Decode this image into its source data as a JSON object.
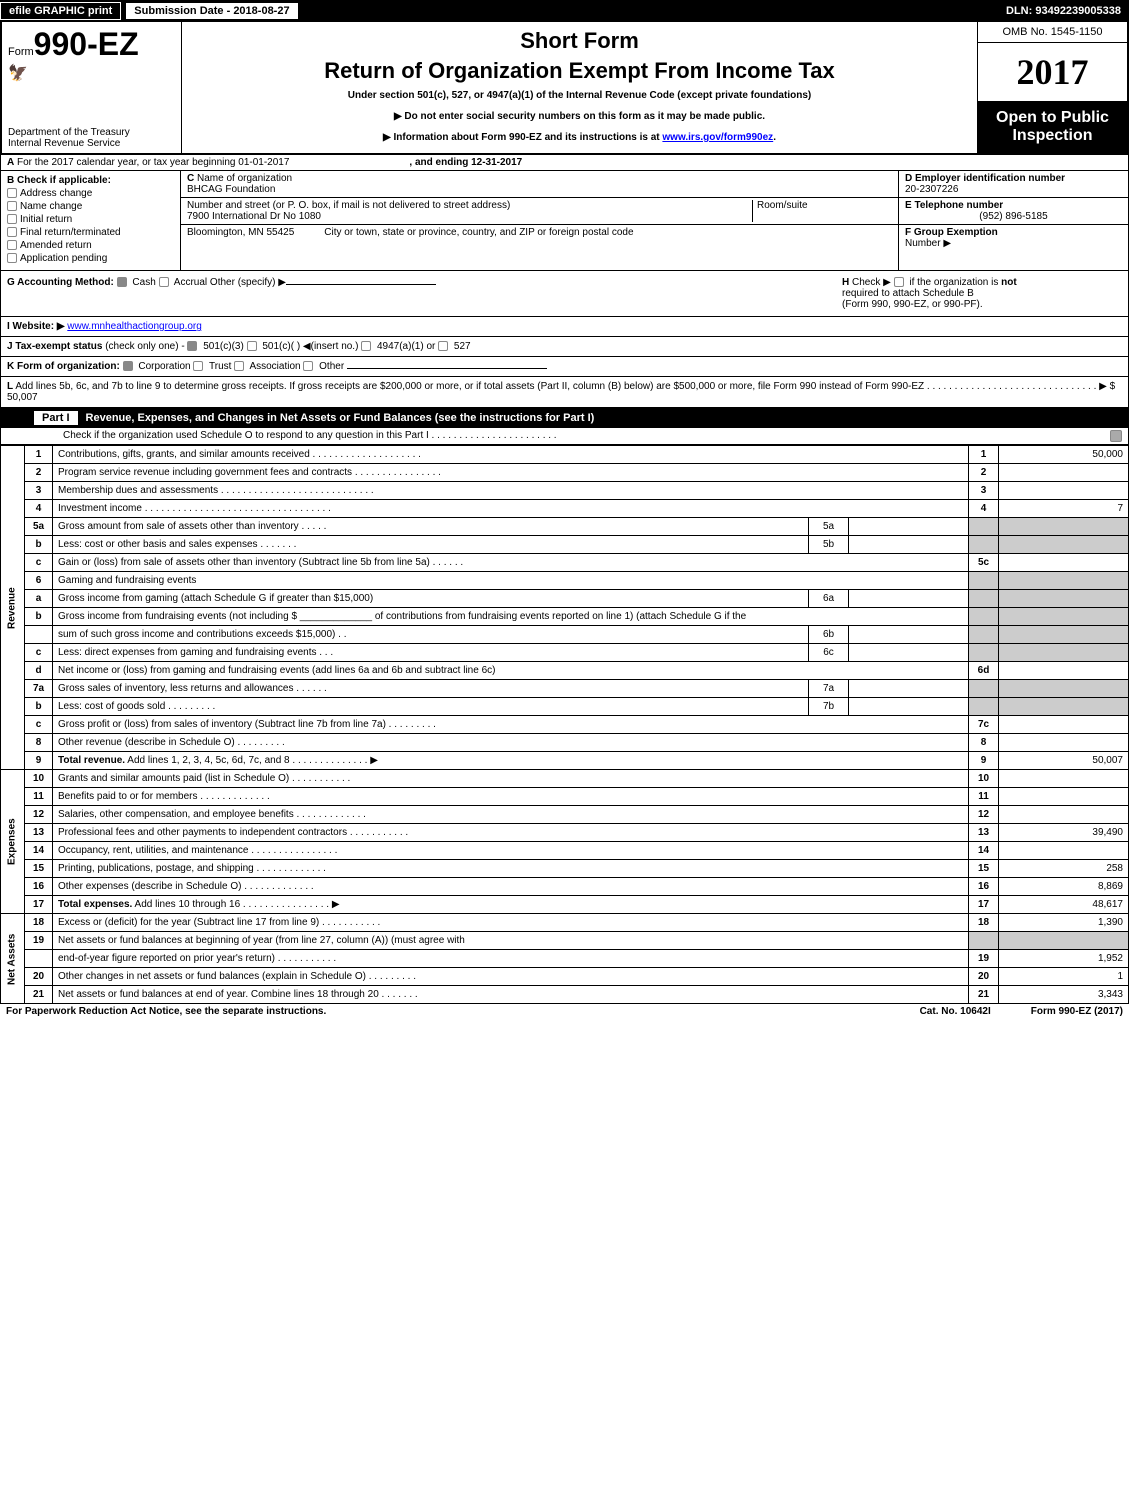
{
  "top_bar": {
    "efile": "efile GRAPHIC print",
    "submission": "Submission Date - 2018-08-27",
    "dln": "DLN: 93492239005338"
  },
  "header": {
    "form_prefix": "Form",
    "form_num": "990-EZ",
    "treasury1": "Department of the Treasury",
    "treasury2": "Internal Revenue Service",
    "short_form": "Short Form",
    "title": "Return of Organization Exempt From Income Tax",
    "under": "Under section 501(c), 527, or 4947(a)(1) of the Internal Revenue Code (except private foundations)",
    "ssn_warn": "▶ Do not enter social security numbers on this form as it may be made public.",
    "info_prefix": "▶ Information about Form 990-EZ and its instructions is at ",
    "info_link": "www.irs.gov/form990ez",
    "omb": "OMB No. 1545-1150",
    "year": "2017",
    "open": "Open to Public Inspection"
  },
  "tax_year": {
    "a_label": "A",
    "text": "For the 2017 calendar year, or tax year beginning 01-01-2017",
    "ending": ", and ending 12-31-2017"
  },
  "section_b": {
    "b_label": "B",
    "check_if": "Check if applicable:",
    "items": [
      "Address change",
      "Name change",
      "Initial return",
      "Final return/terminated",
      "Amended return",
      "Application pending"
    ]
  },
  "section_c": {
    "c_label": "C",
    "name_label": "Name of organization",
    "name": "BHCAG Foundation",
    "street_label": "Number and street (or P. O. box, if mail is not delivered to street address)",
    "street": "7900 International Dr No 1080",
    "room_label": "Room/suite",
    "city_label": "City or town, state or province, country, and ZIP or foreign postal code",
    "city": "Bloomington, MN  55425"
  },
  "section_d": {
    "label": "D Employer identification number",
    "value": "20-2307226"
  },
  "section_e": {
    "label": "E Telephone number",
    "value": "(952) 896-5185"
  },
  "section_f": {
    "label": "F Group Exemption",
    "number": "Number  ▶"
  },
  "section_g": {
    "label": "G Accounting Method:",
    "cash": "Cash",
    "accrual": "Accrual",
    "other": "Other (specify) ▶"
  },
  "section_h": {
    "label": "H",
    "check": "Check ▶",
    "text1": "if the organization is not",
    "text2": "required to attach Schedule B",
    "text3": "(Form 990, 990-EZ, or 990-PF)."
  },
  "section_i": {
    "label": "I Website: ▶",
    "value": "www.mnhealthactiongroup.org"
  },
  "section_j": {
    "label": "J Tax-exempt status",
    "note": "(check only one) -",
    "opt1": "501(c)(3)",
    "opt2": "501(c)(  ) ◀(insert no.)",
    "opt3": "4947(a)(1) or",
    "opt4": "527"
  },
  "section_k": {
    "label": "K Form of organization:",
    "corp": "Corporation",
    "trust": "Trust",
    "assoc": "Association",
    "other": "Other"
  },
  "section_l": {
    "label": "L",
    "text": "Add lines 5b, 6c, and 7b to line 9 to determine gross receipts. If gross receipts are $200,000 or more, or if total assets (Part II, column (B) below) are $500,000 or more, file Form 990 instead of Form 990-EZ  .  .  .  .  .  .  .  .  .  .  .  .  .  .  .  .  .  .  .  .  .  .  .  .  .  .  .  .  .  .  .  ▶ $ 50,007"
  },
  "part1": {
    "label": "Part I",
    "title": "Revenue, Expenses, and Changes in Net Assets or Fund Balances (see the instructions for Part I)",
    "check_o": "Check if the organization used Schedule O to respond to any question in this Part I .  .  .  .  .  .  .  .  .  .  .  .  .  .  .  .  .  .  .  .  .  .  ."
  },
  "side_labels": {
    "revenue": "Revenue",
    "expenses": "Expenses",
    "net_assets": "Net Assets"
  },
  "rows": [
    {
      "n": "1",
      "desc": "Contributions, gifts, grants, and similar amounts received .  .  .  .  .  .  .  .  .  .  .  .  .  .  .  .  .  .  .  .",
      "col": "1",
      "amt": "50,000"
    },
    {
      "n": "2",
      "desc": "Program service revenue including government fees and contracts .  .  .  .  .  .  .  .  .  .  .  .  .  .  .  .",
      "col": "2",
      "amt": ""
    },
    {
      "n": "3",
      "desc": "Membership dues and assessments .  .  .  .  .  .  .  .  .  .  .  .  .  .  .  .  .  .  .  .  .  .  .  .  .  .  .  .",
      "col": "3",
      "amt": ""
    },
    {
      "n": "4",
      "desc": "Investment income .  .  .  .  .  .  .  .  .  .  .  .  .  .  .  .  .  .  .  .  .  .  .  .  .  .  .  .  .  .  .  .  .  .",
      "col": "4",
      "amt": "7"
    },
    {
      "n": "5a",
      "desc": "Gross amount from sale of assets other than inventory .  .  .  .  .",
      "sub": "5a"
    },
    {
      "n": "b",
      "desc": "Less: cost or other basis and sales expenses .  .  .  .  .  .  .",
      "sub": "5b"
    },
    {
      "n": "c",
      "desc": "Gain or (loss) from sale of assets other than inventory (Subtract line 5b from line 5a)           .    .    .    .    .    .",
      "col": "5c",
      "amt": ""
    },
    {
      "n": "6",
      "desc": "Gaming and fundraising events"
    },
    {
      "n": "a",
      "desc": "Gross income from gaming (attach Schedule G if greater than $15,000)",
      "sub": "6a"
    },
    {
      "n": "b",
      "desc": "Gross income from fundraising events (not including $ _____________ of contributions from fundraising events reported on line 1) (attach Schedule G if the"
    },
    {
      "n": "",
      "desc": "sum of such gross income and contributions exceeds $15,000)         .    .",
      "sub": "6b"
    },
    {
      "n": "c",
      "desc": "Less: direct expenses from gaming and fundraising events          .    .    .",
      "sub": "6c"
    },
    {
      "n": "d",
      "desc": "Net income or (loss) from gaming and fundraising events (add lines 6a and 6b and subtract line 6c)",
      "col": "6d",
      "amt": ""
    },
    {
      "n": "7a",
      "desc": "Gross sales of inventory, less returns and allowances           .    .    .    .    .    .",
      "sub": "7a"
    },
    {
      "n": "b",
      "desc": "Less: cost of goods sold                    .    .    .    .    .    .    .    .    .",
      "sub": "7b"
    },
    {
      "n": "c",
      "desc": "Gross profit or (loss) from sales of inventory (Subtract line 7b from line 7a)          .    .    .    .    .    .    .    .    .",
      "col": "7c",
      "amt": ""
    },
    {
      "n": "8",
      "desc": "Other revenue (describe in Schedule O)                       .    .    .    .    .    .    .    .    .",
      "col": "8",
      "amt": ""
    },
    {
      "n": "9",
      "desc": "Total revenue. Add lines 1, 2, 3, 4, 5c, 6d, 7c, and 8          .    .    .    .    .    .    .    .    .    .    .    .    .    .  ▶",
      "col": "9",
      "amt": "50,007",
      "bold": true
    },
    {
      "n": "10",
      "desc": "Grants and similar amounts paid (list in Schedule O)               .    .    .    .    .    .    .    .    .    .    .",
      "col": "10",
      "amt": ""
    },
    {
      "n": "11",
      "desc": "Benefits paid to or for members                     .    .    .    .    .    .    .    .    .    .    .    .    .",
      "col": "11",
      "amt": ""
    },
    {
      "n": "12",
      "desc": "Salaries, other compensation, and employee benefits          .    .    .    .    .    .    .    .    .    .    .    .    .",
      "col": "12",
      "amt": ""
    },
    {
      "n": "13",
      "desc": "Professional fees and other payments to independent contractors     .    .    .    .    .    .    .    .    .    .    .",
      "col": "13",
      "amt": "39,490"
    },
    {
      "n": "14",
      "desc": "Occupancy, rent, utilities, and maintenance         .    .    .    .    .    .    .    .    .    .    .    .    .    .    .    .",
      "col": "14",
      "amt": ""
    },
    {
      "n": "15",
      "desc": "Printing, publications, postage, and shipping              .    .    .    .    .    .    .    .    .    .    .    .    .",
      "col": "15",
      "amt": "258"
    },
    {
      "n": "16",
      "desc": "Other expenses (describe in Schedule O)               .    .    .    .    .    .    .    .    .    .    .    .    .",
      "col": "16",
      "amt": "8,869"
    },
    {
      "n": "17",
      "desc": "Total expenses. Add lines 10 through 16            .    .    .    .    .    .    .    .    .    .    .    .    .    .    .    .   ▶",
      "col": "17",
      "amt": "48,617",
      "bold": true
    },
    {
      "n": "18",
      "desc": "Excess or (deficit) for the year (Subtract line 17 from line 9)          .    .    .    .    .    .    .    .    .    .    .",
      "col": "18",
      "amt": "1,390"
    },
    {
      "n": "19",
      "desc": "Net assets or fund balances at beginning of year (from line 27, column (A)) (must agree with"
    },
    {
      "n": "",
      "desc": "end-of-year figure reported on prior year's return)               .    .    .    .    .    .    .    .    .    .    .",
      "col": "19",
      "amt": "1,952"
    },
    {
      "n": "20",
      "desc": "Other changes in net assets or fund balances (explain in Schedule O)      .    .    .    .    .    .    .    .    .",
      "col": "20",
      "amt": "1"
    },
    {
      "n": "21",
      "desc": "Net assets or fund balances at end of year. Combine lines 18 through 20          .    .    .    .    .    .    .",
      "col": "21",
      "amt": "3,343"
    }
  ],
  "footer": {
    "paperwork": "For Paperwork Reduction Act Notice, see the separate instructions.",
    "cat": "Cat. No. 10642I",
    "form": "Form 990-EZ (2017)"
  }
}
